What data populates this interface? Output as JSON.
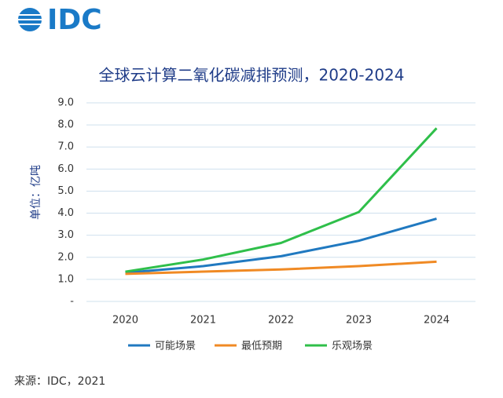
{
  "logo": "IDC",
  "source": "来源：IDC，2021",
  "chart_data": {
    "type": "line",
    "title": "全球云计算二氧化碳减排预测，2020-2024",
    "y_label": "单位：亿吨",
    "categories": [
      "2020",
      "2021",
      "2022",
      "2023",
      "2024"
    ],
    "series": [
      {
        "name": "可能场景",
        "color": "#2079c0",
        "values": [
          1.3,
          1.6,
          2.05,
          2.75,
          3.75
        ]
      },
      {
        "name": "最低预期",
        "color": "#f08a24",
        "values": [
          1.25,
          1.35,
          1.45,
          1.6,
          1.8
        ]
      },
      {
        "name": "乐观场景",
        "color": "#2fbf4a",
        "values": [
          1.35,
          1.9,
          2.65,
          4.05,
          7.85
        ]
      }
    ],
    "ylim": [
      0,
      9
    ],
    "yticks": [
      {
        "value": 0,
        "label": "-"
      },
      {
        "value": 1,
        "label": "1.0"
      },
      {
        "value": 2,
        "label": "2.0"
      },
      {
        "value": 3,
        "label": "3.0"
      },
      {
        "value": 4,
        "label": "4.0"
      },
      {
        "value": 5,
        "label": "5.0"
      },
      {
        "value": 6,
        "label": "6.0"
      },
      {
        "value": 7,
        "label": "7.0"
      },
      {
        "value": 8,
        "label": "8.0"
      },
      {
        "value": 9,
        "label": "9.0"
      }
    ],
    "grid": true,
    "legend": "bottom"
  }
}
